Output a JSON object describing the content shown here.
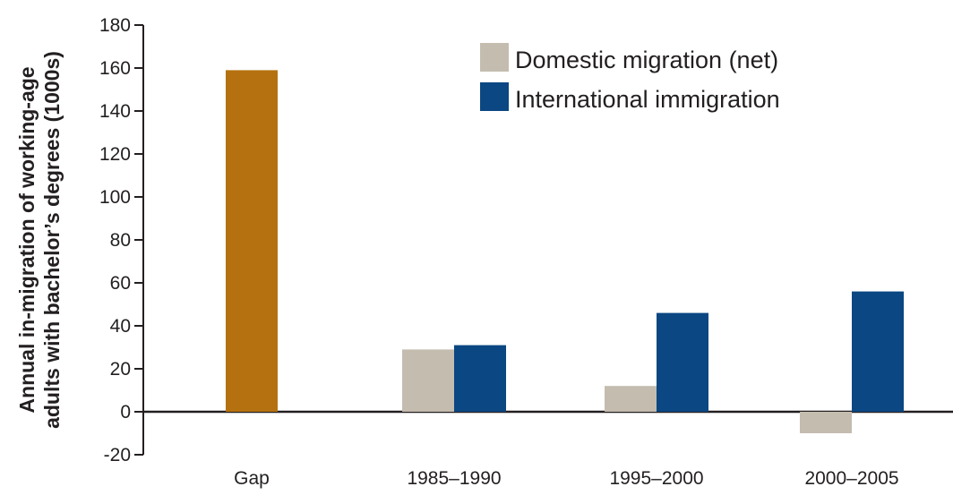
{
  "chart_data": {
    "type": "bar",
    "categories": [
      "Gap",
      "1985–1990",
      "1995–2000",
      "2000–2005"
    ],
    "gap_bar": {
      "category": "Gap",
      "value": 159,
      "color": "#b5710f"
    },
    "series": [
      {
        "name": "Domestic migration (net)",
        "color": "#c4bcaf",
        "values": [
          null,
          29,
          12,
          -10
        ]
      },
      {
        "name": "International immigration",
        "color": "#0b4782",
        "values": [
          null,
          31,
          46,
          56
        ]
      }
    ],
    "ylabel_lines": [
      "Annual in-migration of working-age",
      "adults with bachelor’s degrees (1000s)"
    ],
    "xlabel": "",
    "ylim": [
      -20,
      180
    ],
    "yticks": [
      -20,
      0,
      20,
      40,
      60,
      80,
      100,
      120,
      140,
      160,
      180
    ],
    "legend_position": "top-right",
    "grid": false
  }
}
